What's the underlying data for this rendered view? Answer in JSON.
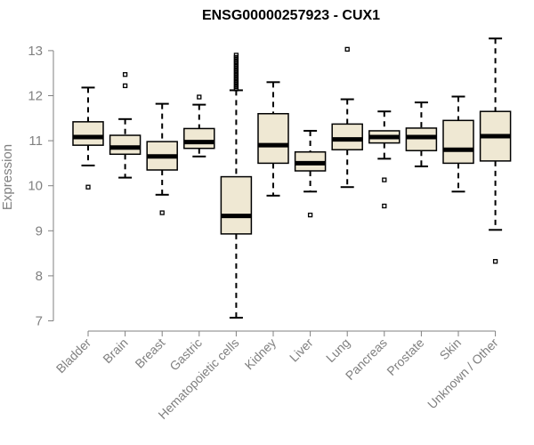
{
  "chart_data": {
    "type": "boxplot",
    "title": "ENSG00000257923 - CUX1",
    "xlabel": "",
    "ylabel": "Expression",
    "ylim": [
      7,
      13.3
    ],
    "yticks": [
      7,
      8,
      9,
      10,
      11,
      12,
      13
    ],
    "categories": [
      "Bladder",
      "Brain",
      "Breast",
      "Gastric",
      "Hematopoietic cells",
      "Kidney",
      "Liver",
      "Lung",
      "Pancreas",
      "Prostate",
      "Skin",
      "Unknown / Other"
    ],
    "boxes": [
      {
        "name": "Bladder",
        "whisker_low": 10.45,
        "q1": 10.9,
        "median": 11.08,
        "q3": 11.42,
        "whisker_high": 12.18,
        "outliers": [
          9.97
        ]
      },
      {
        "name": "Brain",
        "whisker_low": 10.18,
        "q1": 10.7,
        "median": 10.85,
        "q3": 11.12,
        "whisker_high": 11.48,
        "outliers": [
          12.22,
          12.47
        ]
      },
      {
        "name": "Breast",
        "whisker_low": 9.8,
        "q1": 10.35,
        "median": 10.65,
        "q3": 10.98,
        "whisker_high": 11.82,
        "outliers": [
          9.4
        ]
      },
      {
        "name": "Gastric",
        "whisker_low": 10.65,
        "q1": 10.83,
        "median": 10.97,
        "q3": 11.27,
        "whisker_high": 11.8,
        "outliers": [
          11.97
        ]
      },
      {
        "name": "Hematopoietic cells",
        "whisker_low": 7.07,
        "q1": 8.93,
        "median": 9.33,
        "q3": 10.2,
        "whisker_high": 12.12,
        "outliers": [
          12.15,
          12.2,
          12.25,
          12.3,
          12.35,
          12.4,
          12.45,
          12.5,
          12.55,
          12.6,
          12.65,
          12.7,
          12.75,
          12.8,
          12.85,
          12.9
        ]
      },
      {
        "name": "Kidney",
        "whisker_low": 9.78,
        "q1": 10.5,
        "median": 10.9,
        "q3": 11.6,
        "whisker_high": 12.3,
        "outliers": []
      },
      {
        "name": "Liver",
        "whisker_low": 9.87,
        "q1": 10.33,
        "median": 10.5,
        "q3": 10.75,
        "whisker_high": 11.22,
        "outliers": [
          9.35
        ]
      },
      {
        "name": "Lung",
        "whisker_low": 9.97,
        "q1": 10.8,
        "median": 11.03,
        "q3": 11.37,
        "whisker_high": 11.92,
        "outliers": [
          13.03
        ]
      },
      {
        "name": "Pancreas",
        "whisker_low": 10.6,
        "q1": 10.95,
        "median": 11.08,
        "q3": 11.22,
        "whisker_high": 11.65,
        "outliers": [
          10.13,
          9.55
        ]
      },
      {
        "name": "Prostate",
        "whisker_low": 10.43,
        "q1": 10.78,
        "median": 11.08,
        "q3": 11.28,
        "whisker_high": 11.85,
        "outliers": []
      },
      {
        "name": "Skin",
        "whisker_low": 9.87,
        "q1": 10.5,
        "median": 10.8,
        "q3": 11.45,
        "whisker_high": 11.98,
        "outliers": []
      },
      {
        "name": "Unknown / Other",
        "whisker_low": 9.02,
        "q1": 10.55,
        "median": 11.1,
        "q3": 11.65,
        "whisker_high": 13.27,
        "outliers": [
          8.32
        ]
      }
    ],
    "colors": {
      "box_fill": "#efe8d3",
      "axis": "#808080",
      "median": "#000000"
    }
  }
}
